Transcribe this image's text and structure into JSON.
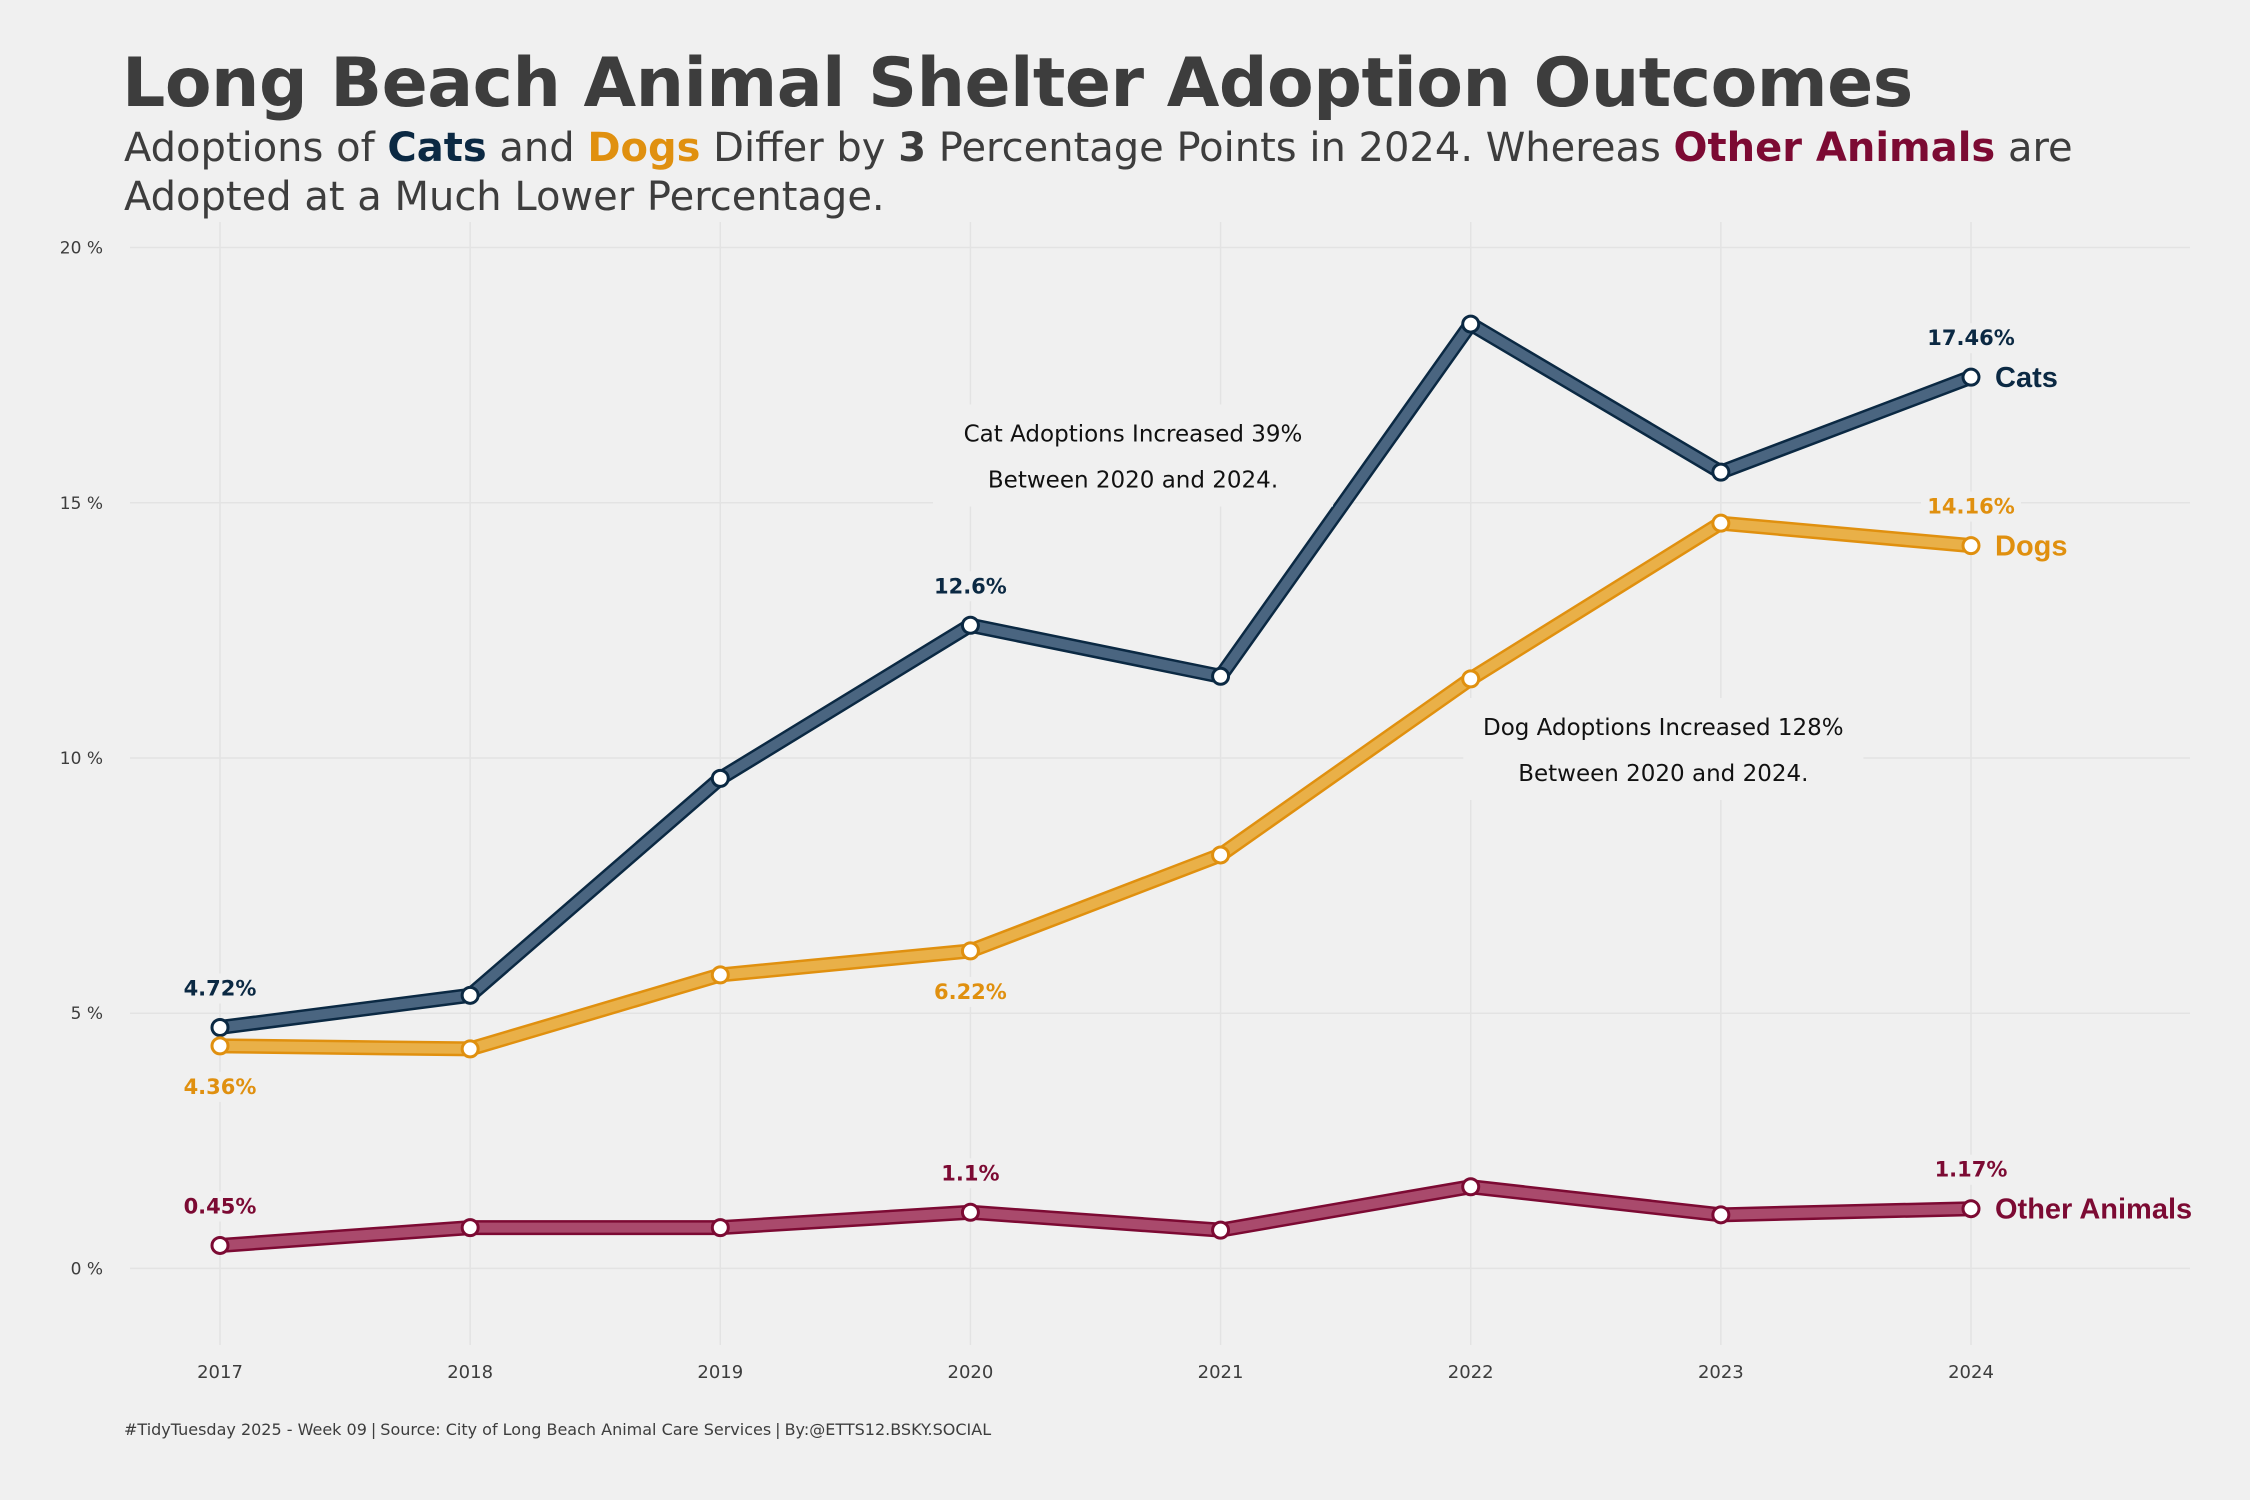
{
  "title": "Long Beach Animal Shelter Adoption Outcomes",
  "subtitle": {
    "p1": "Adoptions of ",
    "cats": "Cats",
    "p2": " and ",
    "dogs": "Dogs",
    "p3": " Differ by ",
    "num": "3",
    "p4": " Percentage Points in 2024. Whereas ",
    "other": "Other Animals",
    "p5": " are Adopted at a Much Lower Percentage."
  },
  "caption": {
    "part1": "#TidyTuesday 2025 - Week 09",
    "sep": "|",
    "part2": "Source: City of Long Beach Animal Care Services",
    "part3": "By:@ETTS12.BSKY.SOCIAL"
  },
  "colors": {
    "cats": "#0b2943",
    "cats_line": "#4a6580",
    "dogs": "#e0900f",
    "dogs_line": "#e9b048",
    "other": "#7c0a33",
    "other_line": "#a94a6c",
    "grid": "#e3e3e3",
    "text": "#3d3d3d",
    "background": "#f0f0f0"
  },
  "chart_data": {
    "type": "line",
    "x": [
      2017,
      2018,
      2019,
      2020,
      2021,
      2022,
      2023,
      2024
    ],
    "ylim": [
      -1.5,
      20.5
    ],
    "yticks": [
      0,
      5,
      10,
      15,
      20
    ],
    "ytick_labels": [
      "0 %",
      "5 %",
      "10 %",
      "15 %",
      "20 %"
    ],
    "xtick_labels": [
      "2017",
      "2018",
      "2019",
      "2020",
      "2021",
      "2022",
      "2023",
      "2024"
    ],
    "grid": true,
    "series": [
      {
        "name": "Cats",
        "values": [
          4.72,
          5.35,
          9.6,
          12.6,
          11.6,
          18.5,
          15.6,
          17.46
        ],
        "labels": [
          {
            "x": 2017,
            "text": "4.72%",
            "pos": "above"
          },
          {
            "x": 2020,
            "text": "12.6%",
            "pos": "above"
          },
          {
            "x": 2024,
            "text": "17.46%",
            "pos": "above"
          }
        ]
      },
      {
        "name": "Dogs",
        "values": [
          4.36,
          4.3,
          5.75,
          6.22,
          8.1,
          11.55,
          14.6,
          14.16
        ],
        "labels": [
          {
            "x": 2017,
            "text": "4.36%",
            "pos": "below"
          },
          {
            "x": 2020,
            "text": "6.22%",
            "pos": "below"
          },
          {
            "x": 2024,
            "text": "14.16%",
            "pos": "above"
          }
        ]
      },
      {
        "name": "Other Animals",
        "values": [
          0.45,
          0.8,
          0.8,
          1.1,
          0.75,
          1.6,
          1.05,
          1.17
        ],
        "labels": [
          {
            "x": 2017,
            "text": "0.45%",
            "pos": "above"
          },
          {
            "x": 2020,
            "text": "1.1%",
            "pos": "above"
          },
          {
            "x": 2024,
            "text": "1.17%",
            "pos": "above"
          }
        ]
      }
    ],
    "annotations": [
      {
        "lines": [
          "Cat Adoptions Increased 39%",
          "Between 2020 and 2024."
        ],
        "x": 2020.65,
        "y": 16.2
      },
      {
        "lines": [
          "Dog Adoptions Increased 128%",
          "Between 2020 and 2024."
        ],
        "x": 2022.77,
        "y": 10.45
      }
    ]
  }
}
